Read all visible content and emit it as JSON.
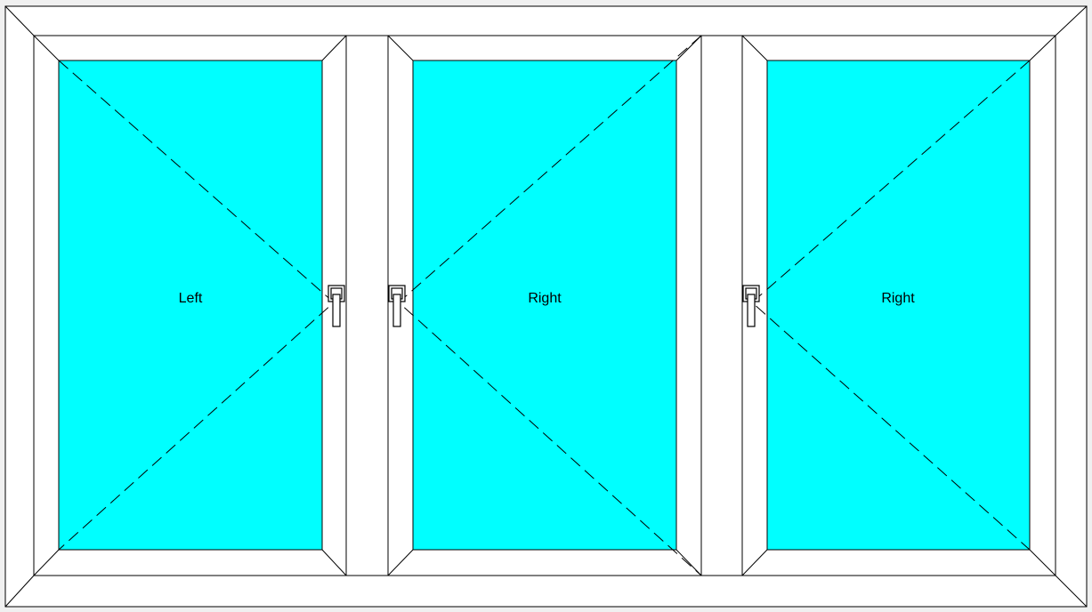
{
  "colors": {
    "glass": "#00ffff",
    "profile": "#ffffff",
    "line": "#000000",
    "background": "#f0f0f0"
  },
  "sashes": [
    {
      "label": "Left",
      "opening": "left"
    },
    {
      "label": "Right",
      "opening": "right"
    },
    {
      "label": "Right",
      "opening": "right"
    }
  ],
  "icons": {
    "handle": "window-handle-icon"
  }
}
